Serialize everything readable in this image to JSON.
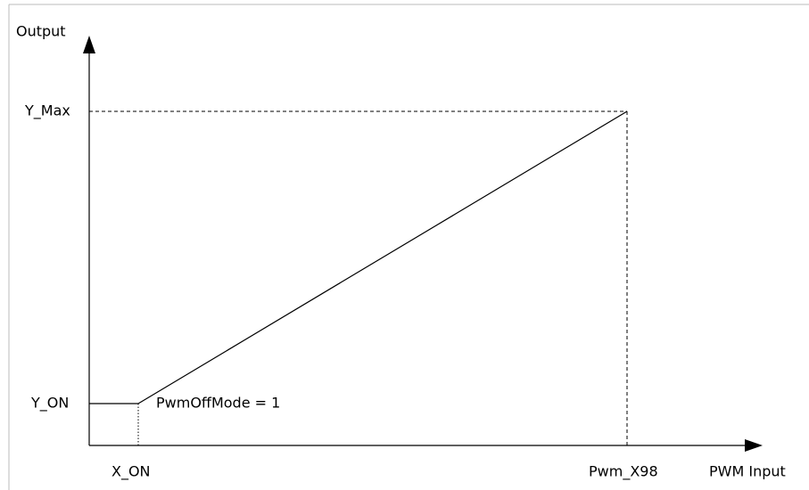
{
  "axes": {
    "y_label": "Output",
    "x_label": "PWM Input"
  },
  "y_levels": {
    "max": "Y_Max",
    "on": "Y_ON"
  },
  "x_levels": {
    "on": "X_ON",
    "max": "Pwm_X98"
  },
  "annotation": "PwmOffMode = 1"
}
